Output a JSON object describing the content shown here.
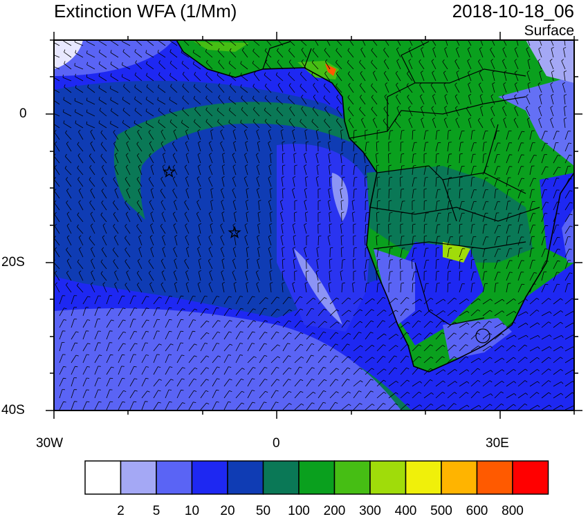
{
  "header": {
    "title": "Extinction WFA (1/Mm)",
    "datetime": "2018-10-18_06",
    "level": "Surface"
  },
  "axes": {
    "lat_labels": [
      "0",
      "20S",
      "40S"
    ],
    "lon_labels": [
      "30W",
      "0",
      "30E"
    ]
  },
  "legend": {
    "colors": [
      "#ffffff",
      "#a4a8f5",
      "#5a64f5",
      "#1e28f2",
      "#0f3cb4",
      "#0a7856",
      "#0aa01e",
      "#46be14",
      "#a0dc0a",
      "#f0f00a",
      "#ffb400",
      "#ff5a00",
      "#ff0000"
    ],
    "labels": [
      "2",
      "5",
      "10",
      "20",
      "50",
      "100",
      "200",
      "300",
      "400",
      "500",
      "600",
      "800"
    ]
  },
  "markers": [
    {
      "name": "star-marker-1",
      "lon": -14.5,
      "lat": -7.8
    },
    {
      "name": "star-marker-2",
      "lon": -5.7,
      "lat": -16.0
    }
  ],
  "map_region": {
    "lon_range": [
      -30,
      40
    ],
    "lat_range": [
      -40,
      10
    ]
  }
}
